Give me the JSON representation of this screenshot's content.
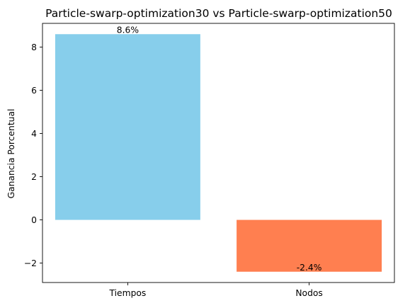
{
  "chart_data": {
    "type": "bar",
    "title": "Particle-swarp-optimization30 vs Particle-swarp-optimization50",
    "xlabel": "",
    "ylabel": "Ganancia Porcentual",
    "categories": [
      "Tiempos",
      "Nodos"
    ],
    "values": [
      8.6,
      -2.4
    ],
    "data_labels": [
      "8.6%",
      "-2.4%"
    ],
    "colors": [
      "#87ceeb",
      "#ff7f50"
    ],
    "ylim": [
      -2.9,
      9.1
    ],
    "yticks": [
      -2,
      0,
      2,
      4,
      6,
      8
    ],
    "ytick_labels": [
      "−2",
      "0",
      "2",
      "4",
      "6",
      "8"
    ],
    "grid": false,
    "legend": "none"
  }
}
